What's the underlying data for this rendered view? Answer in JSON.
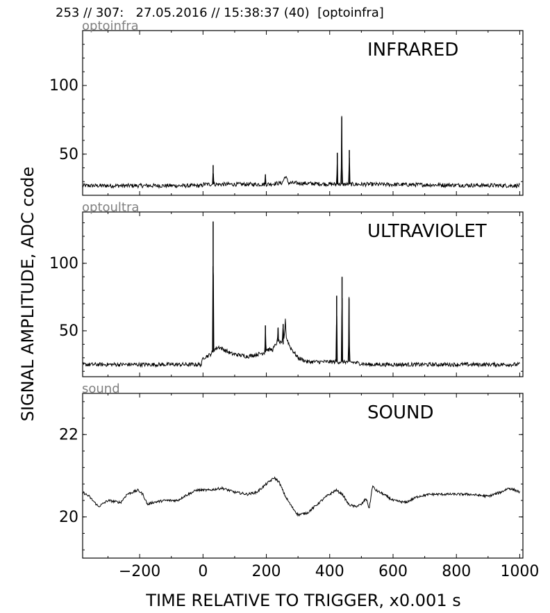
{
  "header": "253 // 307:   27.05.2016 // 15:38:37 (40)  [optoinfra]",
  "ylabel": "SIGNAL AMPLITUDE,  ADC code",
  "xlabel": "TIME RELATIVE TO TRIGGER,   x0.001 s",
  "x_ticks": [
    -200,
    0,
    200,
    400,
    600,
    800,
    1000
  ],
  "chart_data": [
    {
      "type": "line",
      "title": "INFRARED",
      "subtitle": "optoinfra",
      "xlim": [
        -380,
        1010
      ],
      "ylim": [
        20,
        140
      ],
      "y_ticks": [
        50,
        100
      ],
      "baseline": 27,
      "noise": 1.5,
      "points": [
        [
          -380,
          27
        ],
        [
          -2,
          27
        ],
        [
          0,
          28
        ],
        [
          30,
          28
        ],
        [
          32,
          42
        ],
        [
          34,
          28
        ],
        [
          195,
          28
        ],
        [
          197,
          35
        ],
        [
          199,
          28
        ],
        [
          250,
          29
        ],
        [
          260,
          34
        ],
        [
          270,
          29
        ],
        [
          422,
          28
        ],
        [
          424,
          51
        ],
        [
          426,
          28
        ],
        [
          436,
          28
        ],
        [
          438,
          77
        ],
        [
          440,
          28
        ],
        [
          460,
          28
        ],
        [
          462,
          53
        ],
        [
          464,
          28
        ],
        [
          520,
          28
        ],
        [
          1000,
          27
        ]
      ]
    },
    {
      "type": "line",
      "title": "ULTRAVIOLET",
      "subtitle": "optoultra",
      "xlim": [
        -380,
        1010
      ],
      "ylim": [
        16,
        138
      ],
      "y_ticks": [
        50,
        100
      ],
      "baseline": 25,
      "noise": 1.5,
      "points": [
        [
          -380,
          25
        ],
        [
          -5,
          25
        ],
        [
          0,
          30
        ],
        [
          20,
          32
        ],
        [
          30,
          34
        ],
        [
          32,
          131
        ],
        [
          34,
          36
        ],
        [
          50,
          38
        ],
        [
          90,
          33
        ],
        [
          140,
          31
        ],
        [
          180,
          33
        ],
        [
          195,
          34
        ],
        [
          197,
          54
        ],
        [
          199,
          36
        ],
        [
          220,
          36
        ],
        [
          235,
          42
        ],
        [
          237,
          52
        ],
        [
          239,
          42
        ],
        [
          250,
          40
        ],
        [
          253,
          55
        ],
        [
          256,
          42
        ],
        [
          260,
          59
        ],
        [
          263,
          45
        ],
        [
          275,
          38
        ],
        [
          300,
          30
        ],
        [
          330,
          27
        ],
        [
          420,
          27
        ],
        [
          422,
          76
        ],
        [
          424,
          27
        ],
        [
          437,
          27
        ],
        [
          439,
          90
        ],
        [
          441,
          27
        ],
        [
          459,
          27
        ],
        [
          461,
          74
        ],
        [
          463,
          27
        ],
        [
          520,
          25
        ],
        [
          1000,
          25
        ]
      ]
    },
    {
      "type": "line",
      "title": "SOUND",
      "subtitle": "sound",
      "xlim": [
        -380,
        1010
      ],
      "ylim": [
        19,
        23
      ],
      "y_ticks": [
        20,
        22
      ],
      "baseline": 20.6,
      "noise": 0.03,
      "points": [
        [
          -380,
          20.6
        ],
        [
          -360,
          20.5
        ],
        [
          -330,
          20.25
        ],
        [
          -300,
          20.4
        ],
        [
          -260,
          20.35
        ],
        [
          -240,
          20.55
        ],
        [
          -205,
          20.65
        ],
        [
          -190,
          20.55
        ],
        [
          -175,
          20.3
        ],
        [
          -160,
          20.35
        ],
        [
          -120,
          20.4
        ],
        [
          -80,
          20.4
        ],
        [
          -60,
          20.5
        ],
        [
          -20,
          20.65
        ],
        [
          20,
          20.65
        ],
        [
          60,
          20.7
        ],
        [
          100,
          20.6
        ],
        [
          140,
          20.55
        ],
        [
          170,
          20.6
        ],
        [
          200,
          20.8
        ],
        [
          225,
          20.95
        ],
        [
          240,
          20.85
        ],
        [
          260,
          20.5
        ],
        [
          280,
          20.25
        ],
        [
          300,
          20.05
        ],
        [
          330,
          20.1
        ],
        [
          360,
          20.3
        ],
        [
          390,
          20.5
        ],
        [
          420,
          20.65
        ],
        [
          440,
          20.55
        ],
        [
          460,
          20.3
        ],
        [
          480,
          20.25
        ],
        [
          500,
          20.3
        ],
        [
          515,
          20.45
        ],
        [
          525,
          20.2
        ],
        [
          535,
          20.75
        ],
        [
          545,
          20.65
        ],
        [
          570,
          20.55
        ],
        [
          600,
          20.4
        ],
        [
          640,
          20.35
        ],
        [
          680,
          20.5
        ],
        [
          720,
          20.55
        ],
        [
          780,
          20.55
        ],
        [
          840,
          20.55
        ],
        [
          900,
          20.5
        ],
        [
          940,
          20.6
        ],
        [
          965,
          20.7
        ],
        [
          985,
          20.65
        ],
        [
          1000,
          20.6
        ]
      ]
    }
  ]
}
